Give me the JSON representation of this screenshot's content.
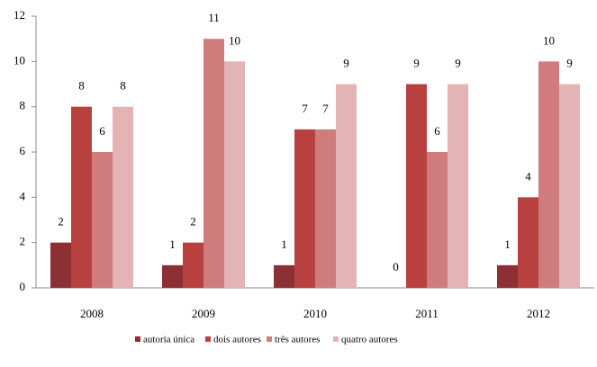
{
  "chart_data": {
    "type": "bar",
    "categories": [
      "2008",
      "2009",
      "2010",
      "2011",
      "2012"
    ],
    "series": [
      {
        "name": "autoria única",
        "color": "#8c3034",
        "values": [
          2,
          1,
          1,
          0,
          1
        ]
      },
      {
        "name": "dois autores",
        "color": "#b8413f",
        "values": [
          8,
          2,
          7,
          9,
          4
        ]
      },
      {
        "name": "três autores",
        "color": "#d07c7c",
        "values": [
          6,
          11,
          7,
          6,
          10
        ]
      },
      {
        "name": "quatro autores",
        "color": "#e4b3b4",
        "values": [
          8,
          10,
          9,
          9,
          9
        ]
      }
    ],
    "ylim": [
      0,
      12
    ],
    "yticks": [
      0,
      2,
      4,
      6,
      8,
      10,
      12
    ],
    "grid": false,
    "legend": "bottom"
  }
}
